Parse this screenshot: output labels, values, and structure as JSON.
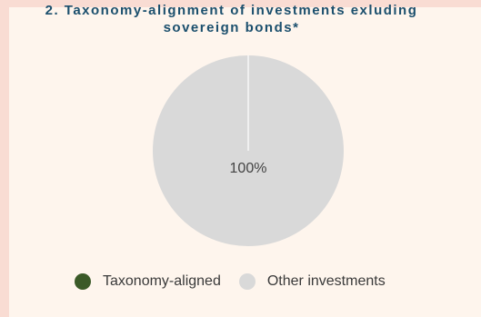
{
  "chart_data": {
    "type": "pie",
    "title_line1": "2. Taxonomy-alignment of investments exluding",
    "title_line2": "sovereign bonds*",
    "slices": [
      {
        "name": "Taxonomy-aligned",
        "value": 0,
        "color": "#3b5a28"
      },
      {
        "name": "Other investments",
        "value": 100,
        "color": "#d9d9d9"
      }
    ],
    "data_labels": [
      "100%"
    ],
    "legend_placement": "bottom"
  },
  "colors": {
    "title": "#1b4f6d",
    "outer_background": "#f9dcd3",
    "panel_background": "#fef5ed"
  }
}
